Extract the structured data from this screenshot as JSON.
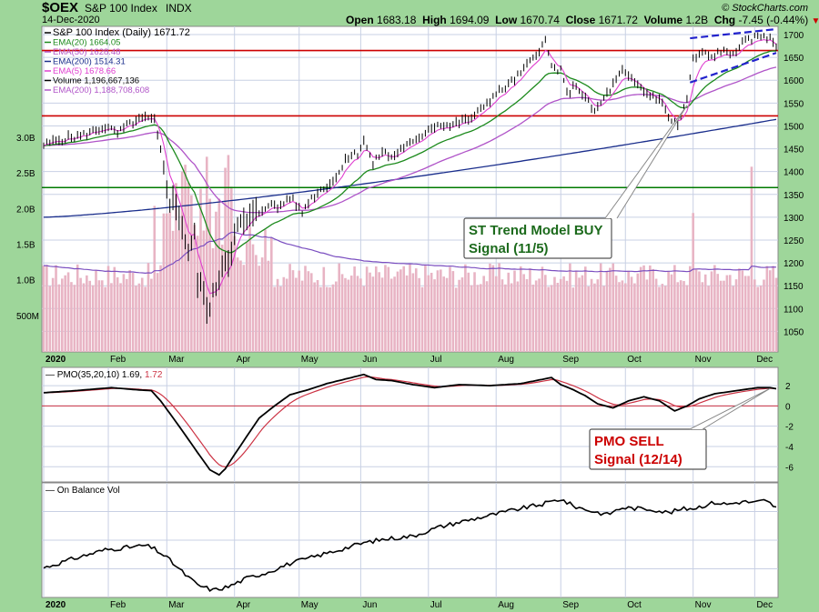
{
  "header": {
    "symbol": "$OEX",
    "name": "S&P 100 Index",
    "exchange": "INDX",
    "date": "14-Dec-2020",
    "credit": "© StockCharts.com",
    "open_label": "Open",
    "open": "1683.18",
    "high_label": "High",
    "high": "1694.09",
    "low_label": "Low",
    "low": "1670.74",
    "close_label": "Close",
    "close": "1671.72",
    "volume_label": "Volume",
    "volume": "1.2B",
    "chg_label": "Chg",
    "chg": "-7.45 (-0.44%)"
  },
  "colors": {
    "bg": "#9ed69a",
    "panel": "#ffffff",
    "grid": "#c8d0e4",
    "price": "#000000",
    "ema20": "#1c8a1c",
    "ema50": "#b054c8",
    "ema200": "#1a2e8c",
    "ema5": "#e040d0",
    "volume_bar": "#e8b4c4",
    "volume_ema": "#7a4ec0",
    "red_line": "#cc0000",
    "green_line": "#007a00",
    "trend": "#2222cc",
    "pmo": "#000000",
    "pmo_signal": "#cc3344",
    "obv": "#000000"
  },
  "chart_data": [
    {
      "type": "line",
      "panel": "price",
      "title": "S&P 100 Index (Daily) 1671.72",
      "legend": [
        {
          "label": "S&P 100 Index (Daily)",
          "value": "1671.72",
          "color": "#000000"
        },
        {
          "label": "EMA(20)",
          "value": "1664.05",
          "color": "#1c8a1c"
        },
        {
          "label": "EMA(50)",
          "value": "1628.48",
          "color": "#b054c8"
        },
        {
          "label": "EMA(200)",
          "value": "1514.31",
          "color": "#1a2e8c"
        },
        {
          "label": "EMA(5)",
          "value": "1678.66",
          "color": "#e040d0"
        },
        {
          "label": "Volume",
          "value": "1,196,667,136",
          "color": "#000000"
        },
        {
          "label": "EMA(200)",
          "value": "1,188,708,608",
          "color": "#b054c8"
        }
      ],
      "legend_position": "top-left",
      "ylim": [
        1005,
        1718
      ],
      "y_ticks": [
        1050,
        1100,
        1150,
        1200,
        1250,
        1300,
        1350,
        1400,
        1450,
        1500,
        1550,
        1600,
        1650,
        1700
      ],
      "volume_axis": {
        "ticks": [
          "500M",
          "1.0B",
          "1.5B",
          "2.0B",
          "2.5B",
          "3.0B"
        ],
        "tick_values": [
          0.5,
          1.0,
          1.5,
          2.0,
          2.5,
          3.0
        ],
        "ylim": [
          0,
          4.57
        ]
      },
      "month_labels": [
        "2020",
        "Feb",
        "Mar",
        "Apr",
        "May",
        "Jun",
        "Jul",
        "Aug",
        "Sep",
        "Oct",
        "Nov",
        "Dec"
      ],
      "month_day_index": [
        0,
        21,
        40,
        62,
        83,
        103,
        125,
        147,
        168,
        189,
        211,
        231
      ],
      "n_days": 239,
      "close_keys": [
        [
          0,
          1458
        ],
        [
          5,
          1470
        ],
        [
          12,
          1478
        ],
        [
          20,
          1498
        ],
        [
          24,
          1483
        ],
        [
          28,
          1505
        ],
        [
          33,
          1517
        ],
        [
          36,
          1510
        ],
        [
          38,
          1445
        ],
        [
          41,
          1340
        ],
        [
          44,
          1310
        ],
        [
          47,
          1225
        ],
        [
          49,
          1255
        ],
        [
          50,
          1160
        ],
        [
          52,
          1130
        ],
        [
          54,
          1095
        ],
        [
          56,
          1150
        ],
        [
          58,
          1200
        ],
        [
          60,
          1215
        ],
        [
          63,
          1275
        ],
        [
          66,
          1290
        ],
        [
          70,
          1310
        ],
        [
          73,
          1330
        ],
        [
          76,
          1320
        ],
        [
          80,
          1345
        ],
        [
          84,
          1310
        ],
        [
          86,
          1335
        ],
        [
          90,
          1360
        ],
        [
          95,
          1385
        ],
        [
          98,
          1430
        ],
        [
          102,
          1440
        ],
        [
          104,
          1470
        ],
        [
          107,
          1415
        ],
        [
          110,
          1445
        ],
        [
          113,
          1430
        ],
        [
          117,
          1455
        ],
        [
          121,
          1465
        ],
        [
          125,
          1495
        ],
        [
          129,
          1505
        ],
        [
          132,
          1500
        ],
        [
          136,
          1510
        ],
        [
          140,
          1520
        ],
        [
          143,
          1545
        ],
        [
          147,
          1570
        ],
        [
          151,
          1590
        ],
        [
          155,
          1615
        ],
        [
          158,
          1640
        ],
        [
          160,
          1660
        ],
        [
          163,
          1685
        ],
        [
          165,
          1630
        ],
        [
          168,
          1620
        ],
        [
          170,
          1570
        ],
        [
          173,
          1590
        ],
        [
          176,
          1560
        ],
        [
          179,
          1530
        ],
        [
          182,
          1560
        ],
        [
          185,
          1590
        ],
        [
          188,
          1620
        ],
        [
          190,
          1605
        ],
        [
          193,
          1590
        ],
        [
          196,
          1570
        ],
        [
          200,
          1560
        ],
        [
          203,
          1520
        ],
        [
          206,
          1500
        ],
        [
          209,
          1560
        ],
        [
          211,
          1645
        ],
        [
          214,
          1660
        ],
        [
          217,
          1650
        ],
        [
          220,
          1665
        ],
        [
          223,
          1655
        ],
        [
          227,
          1680
        ],
        [
          230,
          1690
        ],
        [
          234,
          1700
        ],
        [
          236,
          1690
        ],
        [
          238,
          1672
        ]
      ],
      "ema20_last": 1664.05,
      "ema50_last": 1628.48,
      "ema200_last": 1514.31,
      "ema5_last": 1678.66,
      "ema200_start": 1300,
      "horizontal_lines": [
        {
          "value": 1665,
          "color": "#cc0000"
        },
        {
          "value": 1522,
          "color": "#cc0000"
        },
        {
          "value": 1365,
          "color": "#007a00"
        }
      ],
      "trend_channel": [
        {
          "from": [
            210,
            1692
          ],
          "to": [
            238,
            1712
          ]
        },
        {
          "from": [
            210,
            1595
          ],
          "to": [
            238,
            1660
          ]
        }
      ],
      "annotation": {
        "text": [
          "ST Trend Model BUY",
          "Signal (11/5)"
        ],
        "color": "#1c6a1c",
        "target": [
          209,
          1545
        ]
      }
    },
    {
      "type": "line",
      "panel": "pmo",
      "title": "PMO(35,20,10) 1.69, 1.72",
      "legend": [
        {
          "label": "PMO(35,20,10)",
          "value": "1.69",
          "color": "#000000"
        },
        {
          "label": "",
          "value": "1.72",
          "color": "#cc3344"
        }
      ],
      "ylim": [
        -7.5,
        3.8
      ],
      "y_ticks": [
        2,
        0,
        -2,
        -4,
        -6
      ],
      "zero_line": 0,
      "pmo_keys": [
        [
          0,
          1.3
        ],
        [
          10,
          1.5
        ],
        [
          22,
          1.8
        ],
        [
          30,
          1.6
        ],
        [
          35,
          1.5
        ],
        [
          38,
          0.5
        ],
        [
          44,
          -2
        ],
        [
          50,
          -4.6
        ],
        [
          54,
          -6.3
        ],
        [
          57,
          -6.8
        ],
        [
          59,
          -6.2
        ],
        [
          62,
          -4.8
        ],
        [
          66,
          -3
        ],
        [
          70,
          -1.2
        ],
        [
          75,
          0
        ],
        [
          80,
          1.1
        ],
        [
          86,
          1.6
        ],
        [
          92,
          2.2
        ],
        [
          100,
          2.8
        ],
        [
          104,
          3.1
        ],
        [
          108,
          2.6
        ],
        [
          113,
          2.5
        ],
        [
          120,
          2.1
        ],
        [
          127,
          1.8
        ],
        [
          135,
          2.1
        ],
        [
          145,
          2
        ],
        [
          155,
          2.2
        ],
        [
          165,
          2.8
        ],
        [
          168,
          2.1
        ],
        [
          172,
          1.6
        ],
        [
          176,
          1
        ],
        [
          180,
          0.2
        ],
        [
          185,
          -0.2
        ],
        [
          190,
          0.5
        ],
        [
          195,
          0.9
        ],
        [
          200,
          0.5
        ],
        [
          205,
          -0.5
        ],
        [
          209,
          0
        ],
        [
          213,
          0.7
        ],
        [
          218,
          1.2
        ],
        [
          225,
          1.5
        ],
        [
          232,
          1.8
        ],
        [
          236,
          1.8
        ],
        [
          238,
          1.69
        ]
      ],
      "annotation": {
        "text": [
          "PMO SELL",
          "Signal (12/14)"
        ],
        "color": "#cc0000",
        "target": [
          236,
          1.72
        ]
      }
    },
    {
      "type": "line",
      "panel": "obv",
      "title": "On Balance Vol",
      "legend": [
        {
          "label": "On Balance Vol",
          "color": "#000000"
        }
      ],
      "obv_keys": [
        [
          0,
          26
        ],
        [
          10,
          37
        ],
        [
          20,
          47
        ],
        [
          28,
          50
        ],
        [
          33,
          52
        ],
        [
          36,
          48
        ],
        [
          40,
          38
        ],
        [
          46,
          18
        ],
        [
          50,
          6
        ],
        [
          55,
          0
        ],
        [
          60,
          4
        ],
        [
          66,
          14
        ],
        [
          72,
          20
        ],
        [
          80,
          31
        ],
        [
          88,
          39
        ],
        [
          96,
          47
        ],
        [
          104,
          55
        ],
        [
          110,
          59
        ],
        [
          120,
          63
        ],
        [
          128,
          73
        ],
        [
          136,
          80
        ],
        [
          145,
          87
        ],
        [
          155,
          95
        ],
        [
          162,
          100
        ],
        [
          168,
          106
        ],
        [
          172,
          98
        ],
        [
          178,
          92
        ],
        [
          183,
          88
        ],
        [
          188,
          96
        ],
        [
          193,
          95
        ],
        [
          198,
          94
        ],
        [
          203,
          90
        ],
        [
          207,
          94
        ],
        [
          212,
          96
        ],
        [
          218,
          102
        ],
        [
          222,
          100
        ],
        [
          227,
          103
        ],
        [
          231,
          102
        ],
        [
          234,
          104
        ],
        [
          236,
          101
        ],
        [
          238,
          96
        ]
      ],
      "month_labels": [
        "2020",
        "Feb",
        "Mar",
        "Apr",
        "May",
        "Jun",
        "Jul",
        "Aug",
        "Sep",
        "Oct",
        "Nov",
        "Dec"
      ]
    }
  ]
}
